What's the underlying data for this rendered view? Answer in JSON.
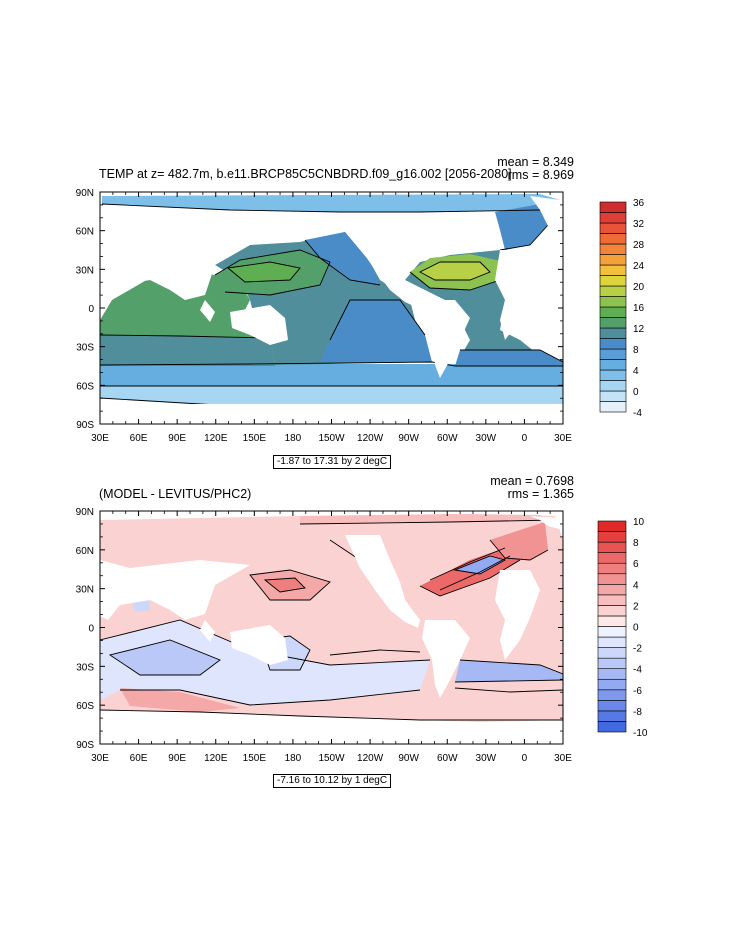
{
  "chart_data": [
    {
      "type": "heatmap",
      "title": "TEMP at z= 482.7m, b.e11.BRCP85C5CNBDRD.f09_g16.002 [2056-2080]",
      "stats": {
        "mean": "mean = 8.349",
        "rms": "rms = 8.969"
      },
      "range_label": "-1.87 to 17.31 by 2 degC",
      "lon_ticks": [
        "30E",
        "60E",
        "90E",
        "120E",
        "150E",
        "180",
        "150W",
        "120W",
        "90W",
        "60W",
        "30W",
        "0",
        "30E"
      ],
      "lat_ticks": [
        "90N",
        "60N",
        "30N",
        "0",
        "30S",
        "60S",
        "90S"
      ],
      "xlim": [
        30,
        390
      ],
      "ylim": [
        -90,
        90
      ],
      "colorbar": {
        "levels": [
          -4,
          -2,
          0,
          2,
          4,
          6,
          8,
          10,
          12,
          14,
          16,
          18,
          20,
          22,
          24,
          26,
          28,
          30,
          32,
          34,
          36
        ],
        "labels": [
          "36",
          "32",
          "28",
          "24",
          "20",
          "16",
          "12",
          "8",
          "4",
          "0",
          "-4"
        ],
        "colors": [
          "#e4f1fb",
          "#c4e4f6",
          "#a6d6f2",
          "#7ebfe9",
          "#67aee0",
          "#5b9ed7",
          "#4a8cc8",
          "#4f8e9a",
          "#54a06a",
          "#5fae52",
          "#8ec250",
          "#b8d045",
          "#dcd43a",
          "#f2c03c",
          "#f4a13c",
          "#f3853a",
          "#ee6a36",
          "#e8533a",
          "#de3e36",
          "#cf2e30"
        ]
      }
    },
    {
      "type": "heatmap",
      "title": "(MODEL - LEVITUS/PHC2)",
      "stats": {
        "mean": "mean = 0.7698",
        "rms": "rms = 1.365"
      },
      "range_label": "-7.16 to 10.12 by 1 degC",
      "lon_ticks": [
        "30E",
        "60E",
        "90E",
        "120E",
        "150E",
        "180",
        "150W",
        "120W",
        "90W",
        "60W",
        "30W",
        "0",
        "30E"
      ],
      "lat_ticks": [
        "90N",
        "60N",
        "30N",
        "0",
        "30S",
        "60S",
        "90S"
      ],
      "xlim": [
        30,
        390
      ],
      "ylim": [
        -90,
        90
      ],
      "colorbar": {
        "levels": [
          -10,
          -9,
          -8,
          -7,
          -6,
          -5,
          -4,
          -3,
          -2,
          -1,
          0,
          1,
          2,
          3,
          4,
          5,
          6,
          7,
          8,
          9,
          10
        ],
        "labels": [
          "10",
          "8",
          "6",
          "4",
          "2",
          "0",
          "-2",
          "-4",
          "-6",
          "-8",
          "-10"
        ],
        "colors": [
          "#4169e1",
          "#5679e6",
          "#6a89ea",
          "#7f99ee",
          "#93a9f1",
          "#a7b9f4",
          "#bac8f7",
          "#cdd7fa",
          "#dfe5fc",
          "#eef2fe",
          "#fde7e7",
          "#fbd2d2",
          "#f8bdbd",
          "#f5a8a8",
          "#f29393",
          "#ef7e7e",
          "#ec6969",
          "#e85454",
          "#e53f3f",
          "#e02a2a"
        ]
      }
    }
  ]
}
